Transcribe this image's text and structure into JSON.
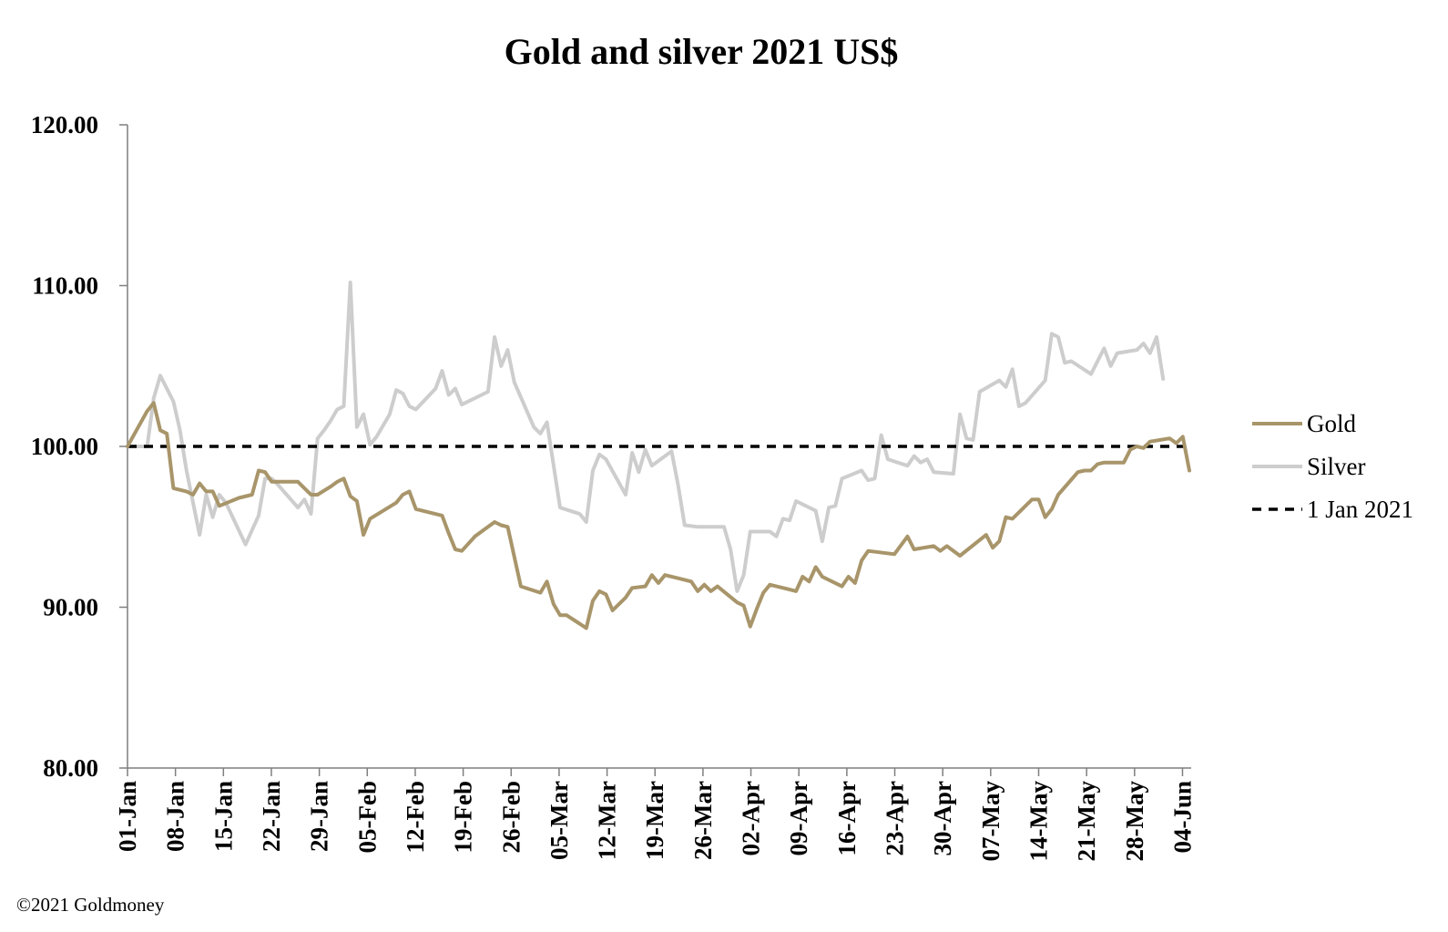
{
  "chart_data": {
    "type": "line",
    "title": "Gold and silver 2021  US$",
    "xlabel": "",
    "ylabel": "",
    "ylim": [
      80,
      120
    ],
    "yticks": [
      "120.00",
      "110.00",
      "100.00",
      "90.00",
      "80.00"
    ],
    "ytick_values": [
      120,
      110,
      100,
      90,
      80
    ],
    "x_start": "01-Jan",
    "x_end": "04-Jun",
    "xticks": [
      {
        "label": "01-Jan",
        "day": 0
      },
      {
        "label": "08-Jan",
        "day": 7
      },
      {
        "label": "15-Jan",
        "day": 14
      },
      {
        "label": "22-Jan",
        "day": 21
      },
      {
        "label": "29-Jan",
        "day": 28
      },
      {
        "label": "05-Feb",
        "day": 35
      },
      {
        "label": "12-Feb",
        "day": 42
      },
      {
        "label": "19-Feb",
        "day": 49
      },
      {
        "label": "26-Feb",
        "day": 56
      },
      {
        "label": "05-Mar",
        "day": 63
      },
      {
        "label": "12-Mar",
        "day": 70
      },
      {
        "label": "19-Mar",
        "day": 77
      },
      {
        "label": "26-Mar",
        "day": 84
      },
      {
        "label": "02-Apr",
        "day": 91
      },
      {
        "label": "09-Apr",
        "day": 98
      },
      {
        "label": "16-Apr",
        "day": 105
      },
      {
        "label": "23-Apr",
        "day": 112
      },
      {
        "label": "30-Apr",
        "day": 119
      },
      {
        "label": "07-May",
        "day": 126
      },
      {
        "label": "14-May",
        "day": 133
      },
      {
        "label": "21-May",
        "day": 140
      },
      {
        "label": "28-May",
        "day": 147
      },
      {
        "label": "04-Jun",
        "day": 154
      }
    ],
    "x_max_day": 155,
    "grid": false,
    "legend_position": "right",
    "series": [
      {
        "name": "Gold",
        "color": "#a8956a",
        "style": "solid",
        "points": [
          [
            0,
            100
          ],
          [
            3,
            102.2
          ],
          [
            4,
            102.7
          ],
          [
            5,
            101
          ],
          [
            6,
            100.8
          ],
          [
            7,
            97.4
          ],
          [
            9,
            97.2
          ],
          [
            10,
            97.0
          ],
          [
            11,
            97.7
          ],
          [
            12,
            97.2
          ],
          [
            13,
            97.2
          ],
          [
            14,
            96.3
          ],
          [
            17,
            96.8
          ],
          [
            19,
            97.0
          ],
          [
            20,
            98.5
          ],
          [
            21,
            98.4
          ],
          [
            22,
            97.8
          ],
          [
            25,
            97.8
          ],
          [
            26,
            97.8
          ],
          [
            27,
            97.4
          ],
          [
            28,
            97.0
          ],
          [
            29,
            97.0
          ],
          [
            31,
            97.5
          ],
          [
            32,
            97.8
          ],
          [
            33,
            98.0
          ],
          [
            34,
            96.9
          ],
          [
            35,
            96.6
          ],
          [
            36,
            94.5
          ],
          [
            37,
            95.5
          ],
          [
            41,
            96.5
          ],
          [
            42,
            97.0
          ],
          [
            43,
            97.2
          ],
          [
            44,
            96.1
          ],
          [
            48,
            95.7
          ],
          [
            49,
            94.6
          ],
          [
            50,
            93.6
          ],
          [
            51,
            93.5
          ],
          [
            53,
            94.4
          ],
          [
            56,
            95.3
          ],
          [
            57,
            95.1
          ],
          [
            58,
            95.0
          ],
          [
            60,
            91.3
          ],
          [
            63,
            90.9
          ],
          [
            64,
            91.6
          ],
          [
            65,
            90.2
          ],
          [
            66,
            89.5
          ],
          [
            67,
            89.5
          ],
          [
            70,
            88.7
          ],
          [
            71,
            90.4
          ],
          [
            72,
            91.0
          ],
          [
            73,
            90.8
          ],
          [
            74,
            89.8
          ],
          [
            76,
            90.6
          ],
          [
            77,
            91.2
          ],
          [
            79,
            91.3
          ],
          [
            80,
            92.0
          ],
          [
            81,
            91.5
          ],
          [
            82,
            92.0
          ],
          [
            84,
            91.8
          ],
          [
            86,
            91.6
          ],
          [
            87,
            91.0
          ],
          [
            88,
            91.4
          ],
          [
            89,
            91.0
          ],
          [
            90,
            91.3
          ],
          [
            93,
            90.3
          ],
          [
            94,
            90.1
          ],
          [
            95,
            88.8
          ],
          [
            96,
            89.9
          ],
          [
            97,
            90.9
          ],
          [
            98,
            91.4
          ],
          [
            101,
            91.1
          ],
          [
            102,
            91.0
          ],
          [
            103,
            91.9
          ],
          [
            104,
            91.6
          ],
          [
            105,
            92.5
          ],
          [
            106,
            91.9
          ],
          [
            109,
            91.3
          ],
          [
            110,
            91.9
          ],
          [
            111,
            91.5
          ],
          [
            112,
            92.9
          ],
          [
            113,
            93.5
          ],
          [
            117,
            93.3
          ],
          [
            119,
            94.4
          ],
          [
            120,
            93.6
          ],
          [
            123,
            93.8
          ],
          [
            124,
            93.5
          ],
          [
            125,
            93.8
          ],
          [
            127,
            93.2
          ],
          [
            131,
            94.5
          ],
          [
            132,
            93.7
          ],
          [
            133,
            94.1
          ],
          [
            134,
            95.6
          ],
          [
            135,
            95.5
          ],
          [
            138,
            96.7
          ],
          [
            139,
            96.7
          ],
          [
            140,
            95.6
          ],
          [
            141,
            96.1
          ],
          [
            142,
            97.0
          ],
          [
            145,
            98.4
          ],
          [
            146,
            98.5
          ],
          [
            147,
            98.5
          ],
          [
            148,
            98.9
          ],
          [
            149,
            99.0
          ],
          [
            152,
            99.0
          ],
          [
            153,
            99.8
          ],
          [
            154,
            100.0
          ],
          [
            155,
            99.9
          ],
          [
            156,
            100.3
          ],
          [
            159,
            100.5
          ],
          [
            160,
            100.2
          ],
          [
            161,
            100.6
          ],
          [
            162,
            98.5
          ]
        ]
      },
      {
        "name": "Silver",
        "color": "#cdcdcd",
        "style": "solid",
        "points": [
          [
            0,
            100
          ],
          [
            1,
            100
          ],
          [
            2,
            100
          ],
          [
            3,
            100
          ],
          [
            4,
            103.0
          ],
          [
            5,
            104.4
          ],
          [
            7,
            102.8
          ],
          [
            8,
            101.0
          ],
          [
            9,
            98.5
          ],
          [
            10,
            96.5
          ],
          [
            11,
            94.5
          ],
          [
            12,
            97.0
          ],
          [
            13,
            95.6
          ],
          [
            14,
            97.0
          ],
          [
            15,
            96.5
          ],
          [
            18,
            93.9
          ],
          [
            19,
            94.8
          ],
          [
            20,
            95.7
          ],
          [
            21,
            98.0
          ],
          [
            22,
            98.0
          ],
          [
            23,
            97.6
          ],
          [
            26,
            96.2
          ],
          [
            27,
            96.7
          ],
          [
            28,
            95.8
          ],
          [
            29,
            100.5
          ],
          [
            30,
            101.0
          ],
          [
            31,
            101.6
          ],
          [
            32,
            102.3
          ],
          [
            33,
            102.5
          ],
          [
            34,
            110.2
          ],
          [
            35,
            101.2
          ],
          [
            36,
            102.0
          ],
          [
            37,
            100.1
          ],
          [
            38,
            100.6
          ],
          [
            40,
            102.0
          ],
          [
            41,
            103.5
          ],
          [
            42,
            103.3
          ],
          [
            43,
            102.5
          ],
          [
            44,
            102.3
          ],
          [
            47,
            103.6
          ],
          [
            48,
            104.7
          ],
          [
            49,
            103.2
          ],
          [
            50,
            103.6
          ],
          [
            51,
            102.6
          ],
          [
            55,
            103.4
          ],
          [
            56,
            106.8
          ],
          [
            57,
            105.0
          ],
          [
            58,
            106.0
          ],
          [
            59,
            104.0
          ],
          [
            62,
            101.2
          ],
          [
            63,
            100.8
          ],
          [
            64,
            101.5
          ],
          [
            66,
            96.2
          ],
          [
            69,
            95.8
          ],
          [
            70,
            95.3
          ],
          [
            71,
            98.5
          ],
          [
            72,
            99.5
          ],
          [
            73,
            99.2
          ],
          [
            76,
            97.0
          ],
          [
            77,
            99.6
          ],
          [
            78,
            98.4
          ],
          [
            79,
            99.8
          ],
          [
            80,
            98.8
          ],
          [
            83,
            99.7
          ],
          [
            84,
            97.6
          ],
          [
            85,
            95.1
          ],
          [
            87,
            95.0
          ],
          [
            91,
            95.0
          ],
          [
            92,
            93.6
          ],
          [
            93,
            91.0
          ],
          [
            94,
            92.0
          ],
          [
            95,
            94.7
          ],
          [
            98,
            94.7
          ],
          [
            99,
            94.4
          ],
          [
            100,
            95.5
          ],
          [
            101,
            95.4
          ],
          [
            102,
            96.6
          ],
          [
            104,
            96.2
          ],
          [
            105,
            96.0
          ],
          [
            106,
            94.1
          ],
          [
            107,
            96.2
          ],
          [
            108,
            96.3
          ],
          [
            109,
            98.0
          ],
          [
            112,
            98.5
          ],
          [
            113,
            97.9
          ],
          [
            114,
            98.0
          ],
          [
            115,
            100.7
          ],
          [
            116,
            99.2
          ],
          [
            119,
            98.8
          ],
          [
            120,
            99.4
          ],
          [
            121,
            99.0
          ],
          [
            122,
            99.2
          ],
          [
            123,
            98.4
          ],
          [
            126,
            98.3
          ],
          [
            127,
            102.0
          ],
          [
            128,
            100.5
          ],
          [
            129,
            100.4
          ],
          [
            130,
            103.4
          ],
          [
            133,
            104.1
          ],
          [
            134,
            103.7
          ],
          [
            135,
            104.8
          ],
          [
            136,
            102.5
          ],
          [
            137,
            102.7
          ],
          [
            140,
            104.1
          ],
          [
            141,
            107.0
          ],
          [
            142,
            106.8
          ],
          [
            143,
            105.2
          ],
          [
            144,
            105.3
          ],
          [
            147,
            104.5
          ],
          [
            149,
            106.1
          ],
          [
            150,
            105.0
          ],
          [
            151,
            105.8
          ],
          [
            154,
            106.0
          ],
          [
            155,
            106.4
          ],
          [
            156,
            105.8
          ],
          [
            157,
            106.8
          ],
          [
            158,
            104.2
          ]
        ]
      },
      {
        "name": "1 Jan 2021",
        "color": "#000000",
        "style": "dashed",
        "points": [
          [
            0,
            100
          ],
          [
            162,
            100
          ]
        ]
      }
    ]
  },
  "footer": {
    "copyright": "©2021 Goldmoney"
  }
}
